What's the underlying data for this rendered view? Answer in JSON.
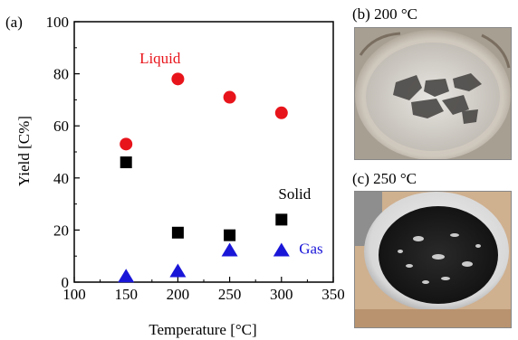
{
  "chart_data": {
    "type": "scatter",
    "panel_label": "(a)",
    "xlabel": "Temperature [°C]",
    "ylabel": "Yield [C%]",
    "xlim": [
      100,
      350
    ],
    "ylim": [
      0,
      100
    ],
    "xticks": [
      100,
      150,
      200,
      250,
      300,
      350
    ],
    "yticks": [
      0,
      20,
      40,
      60,
      80,
      100
    ],
    "grid": false,
    "series": [
      {
        "name": "Liquid",
        "marker": "circle",
        "color": "#e8141b",
        "points": [
          [
            150,
            53
          ],
          [
            200,
            78
          ],
          [
            250,
            71
          ],
          [
            300,
            65
          ]
        ]
      },
      {
        "name": "Solid",
        "marker": "square",
        "color": "#000000",
        "points": [
          [
            150,
            46
          ],
          [
            200,
            19
          ],
          [
            250,
            18
          ],
          [
            300,
            24
          ]
        ]
      },
      {
        "name": "Gas",
        "marker": "triangle",
        "color": "#1a16d8",
        "points": [
          [
            150,
            2
          ],
          [
            200,
            4
          ],
          [
            250,
            12
          ],
          [
            300,
            12
          ]
        ]
      }
    ],
    "annotations": [
      {
        "text": "Liquid",
        "x": 163,
        "y": 84,
        "color": "#e8141b"
      },
      {
        "text": "Solid",
        "x": 297,
        "y": 32,
        "color": "#000000"
      },
      {
        "text": "Gas",
        "x": 317,
        "y": 11,
        "color": "#1a16d8"
      }
    ]
  },
  "photos": {
    "b": {
      "label": "(b) 200 °C"
    },
    "c": {
      "label": "(c) 250 °C"
    }
  }
}
